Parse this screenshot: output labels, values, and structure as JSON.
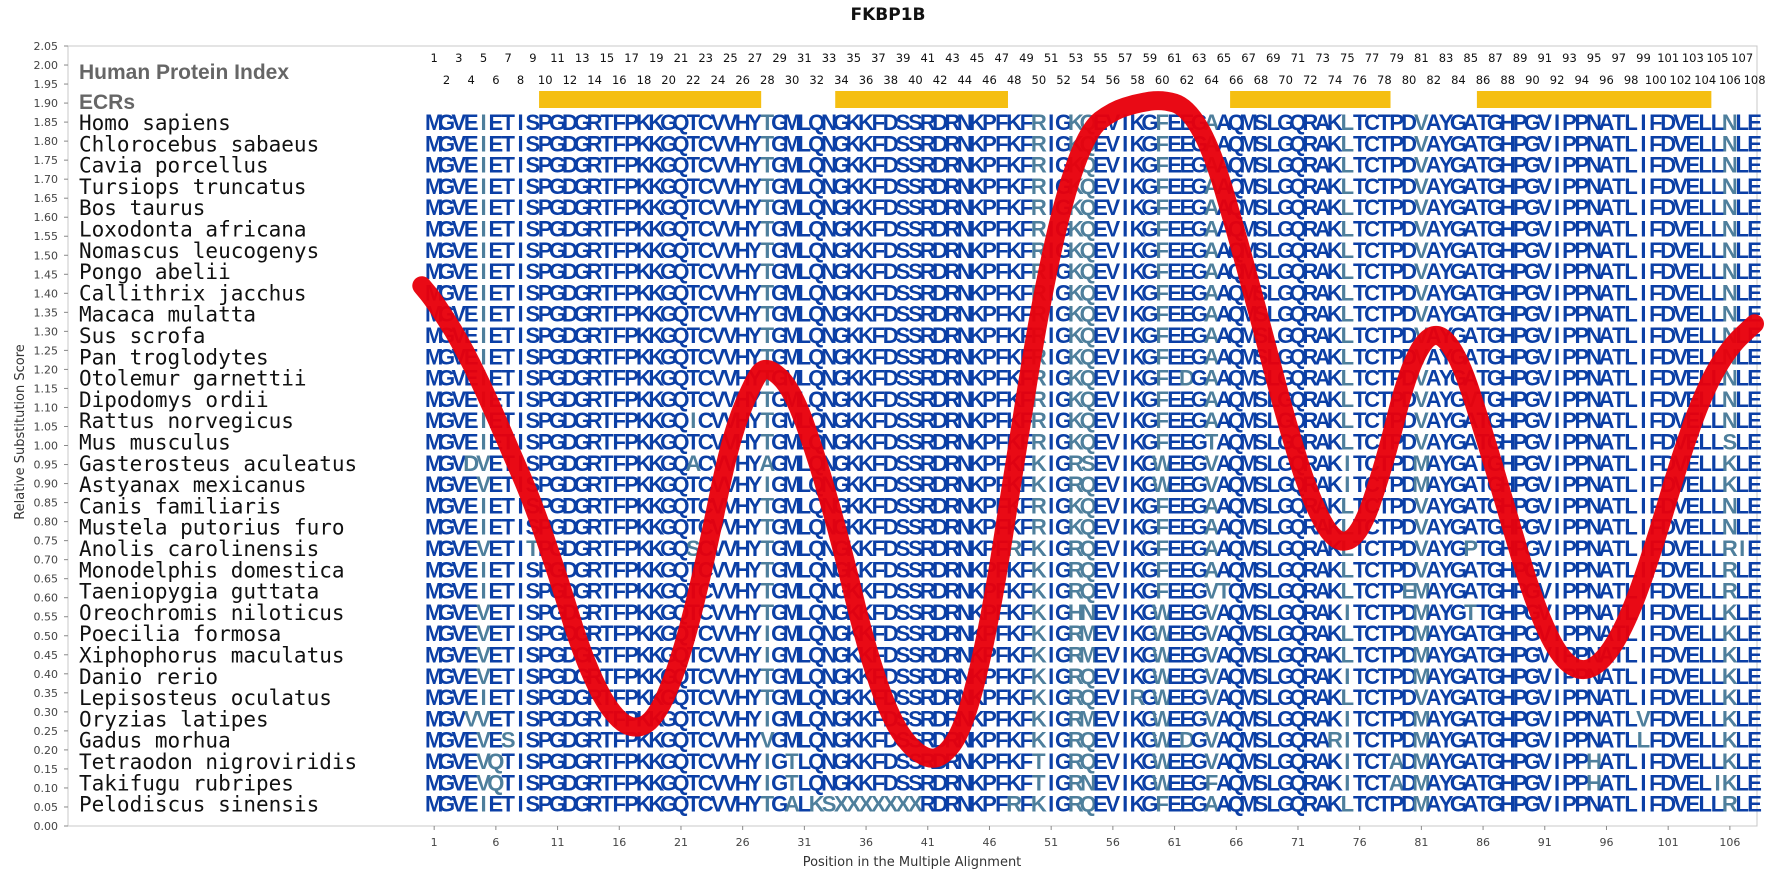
{
  "chart_data": {
    "type": "line",
    "title": "FKBP1B",
    "ylabel": "Relative Substitution Score",
    "xlabel": "Position in the Multiple Alignment",
    "ylim": [
      0.0,
      2.05
    ],
    "xlim": [
      1,
      108
    ],
    "yticks": [
      "0.00",
      "0.05",
      "0.10",
      "0.15",
      "0.20",
      "0.25",
      "0.30",
      "0.35",
      "0.40",
      "0.45",
      "0.50",
      "0.55",
      "0.60",
      "0.65",
      "0.70",
      "0.75",
      "0.80",
      "0.85",
      "0.90",
      "0.95",
      "1.00",
      "1.05",
      "1.10",
      "1.15",
      "1.20",
      "1.25",
      "1.30",
      "1.35",
      "1.40",
      "1.45",
      "1.50",
      "1.55",
      "1.60",
      "1.65",
      "1.70",
      "1.75",
      "1.80",
      "1.85",
      "1.90",
      "1.95",
      "2.00",
      "2.05"
    ],
    "xticks": [
      1,
      6,
      11,
      16,
      21,
      26,
      31,
      36,
      41,
      46,
      51,
      56,
      61,
      66,
      71,
      76,
      81,
      86,
      91,
      96,
      101,
      106
    ],
    "header_label": "Human Protein Index",
    "ecr_label": "ECRs",
    "position_numbers": [
      1,
      2,
      3,
      4,
      5,
      6,
      7,
      8,
      9,
      10,
      11,
      12,
      13,
      14,
      15,
      16,
      17,
      18,
      19,
      20,
      21,
      22,
      23,
      24,
      25,
      26,
      27,
      28,
      29,
      30,
      31,
      32,
      33,
      34,
      35,
      36,
      37,
      38,
      39,
      40,
      41,
      42,
      43,
      44,
      45,
      46,
      47,
      48,
      49,
      50,
      51,
      52,
      53,
      54,
      55,
      56,
      57,
      58,
      59,
      60,
      61,
      62,
      63,
      64,
      65,
      66,
      67,
      68,
      69,
      70,
      71,
      72,
      73,
      74,
      75,
      76,
      77,
      78,
      79,
      80,
      81,
      82,
      83,
      84,
      85,
      86,
      87,
      88,
      89,
      90,
      91,
      92,
      93,
      94,
      95,
      96,
      97,
      98,
      99,
      100,
      101,
      102,
      103,
      104,
      105,
      106,
      107,
      108
    ],
    "ecr_color": "#f5bf12",
    "line_color": "#e8000b",
    "conserved_color": "#0b3fa6",
    "variable_color": "#4e7f9c",
    "ecr_regions": [
      [
        10,
        27
      ],
      [
        34,
        47
      ],
      [
        66,
        78
      ],
      [
        86,
        104
      ]
    ],
    "series": [
      {
        "x": [
          0,
          1,
          3,
          5,
          7,
          9,
          11,
          13,
          15,
          17,
          19,
          21,
          23,
          25,
          27,
          28,
          30,
          32,
          34,
          36,
          38,
          40,
          42,
          44,
          46,
          48,
          50,
          52,
          54,
          56,
          58,
          60,
          62,
          64,
          66,
          68,
          70,
          72,
          74,
          76,
          78,
          80,
          82,
          84,
          86,
          88,
          90,
          92,
          94,
          96,
          98,
          100,
          102,
          104,
          106,
          108
        ],
        "values": [
          1.42,
          1.38,
          1.28,
          1.15,
          1.0,
          0.85,
          0.66,
          0.45,
          0.31,
          0.25,
          0.28,
          0.44,
          0.7,
          1.02,
          1.18,
          1.21,
          1.15,
          0.97,
          0.74,
          0.47,
          0.28,
          0.19,
          0.17,
          0.26,
          0.53,
          0.94,
          1.35,
          1.65,
          1.83,
          1.88,
          1.9,
          1.91,
          1.89,
          1.78,
          1.56,
          1.32,
          1.07,
          0.86,
          0.74,
          0.76,
          0.95,
          1.21,
          1.31,
          1.24,
          1.04,
          0.82,
          0.6,
          0.45,
          0.4,
          0.44,
          0.56,
          0.75,
          0.97,
          1.15,
          1.26,
          1.32
        ]
      }
    ],
    "rows": [
      {
        "species": "Homo sapiens",
        "seq": "MGVEIETISPGDGRTFPKKGQTCVVHYTGMLQNGKKFDSSRDRNKPFKFRIGKQEVIKGFEEGAAQMSLGQRAKLTCTPDVAYGATGHPGVIPPNATLIFDVELLNLE"
      },
      {
        "species": "Chlorocebus sabaeus",
        "seq": "MGVEIETISPGDGRTFPKKGQTCVVHYTGMLQNGKKFDSSRDRNKPFKFRIGKQEVIKGFEEGAAQMSLGQRAKLTCTPDVAYGATGHPGVIPPNATLIFDVELLNLE"
      },
      {
        "species": "Cavia porcellus",
        "seq": "MGVEIETISPGDGRTFPKKGQTCVVHYTGMLQNGKKFDSSRDRNKPFKFRIGKQEVIKGFEEGAAQMSLGQRAKLTCTPDVAYGATGHPGVIPPNATLIFDVELLNLE"
      },
      {
        "species": "Tursiops truncatus",
        "seq": "MGVEIETISPGDGRTFPKKGQTCVVHYTGMLQNGKKFDSSRDRNKPFKFRIGKQEVIKGFEEGAAQMSLGQRAKLTCTPDVAYGATGHPGVIPPNATLIFDVELLNLE"
      },
      {
        "species": "Bos taurus",
        "seq": "MGVEIETISPGDGRTFPKKGQTCVVHYTGMLQNGKKFDSSRDRNKPFKFRIGKQEVIKGFEEGAAQMSLGQRAKLTCTPDVAYGATGHPGVIPPNATLIFDVELLNLE"
      },
      {
        "species": "Loxodonta africana",
        "seq": "MGVEIETISPGDGRTFPKKGQTCVVHYTGMLQNGKKFDSSRDRNKPFKFRIGKQEVIKGFEEGAAQMSLGQRAKLTCTPDVAYGATGHPGVIPPNATLIFDVELLNLE"
      },
      {
        "species": "Nomascus leucogenys",
        "seq": "MGVEIETISPGDGRTFPKKGQTCVVHYTGMLQNGKKFDSSRDRNKPFKFRIGKQEVIKGFEEGAAQMSLGQRAKLTCTPDVAYGATGHPGVIPPNATLIFDVELLNLE"
      },
      {
        "species": "Pongo abelii",
        "seq": "MGVEIETISPGDGRTFPKKGQTCVVHYTGMLQNGKKFDSSRDRNKPFKFRIGKQEVIKGFEEGAAQMSLGQRAKLTCTPDVAYGATGHPGVIPPNATLIFDVELLNLE"
      },
      {
        "species": "Callithrix jacchus",
        "seq": "MGVEIETISPGDGRTFPKKGQTCVVHYTGMLQNGKKFDSSRDRNKPFKFRIGKQEVIKGFEEGAAQMSLGQRAKLTCTPDVAYGATGHPGVIPPNATLIFDVELLNLE"
      },
      {
        "species": "Macaca mulatta",
        "seq": "MGVEIETISPGDGRTFPKKGQTCVVHYTGMLQNGKKFDSSRDRNKPFKFRIGKQEVIKGFEEGAAQMSLGQRAKLTCTPDVAYGATGHPGVIPPNATLIFDVELLNLE"
      },
      {
        "species": "Sus scrofa",
        "seq": "MGVEIETISPGDGRTFPKKGQTCVVHYTGMLQNGKKFDSSRDRNKPFKFRIGKQEVIKGFEEGAAQMSLGQRAKLTCTPDVAYGATGHPGVIPPNATLIFDVELLNLE"
      },
      {
        "species": "Pan troglodytes",
        "seq": "MGVEIETISPGDGRTFPKKGQTCVVHYTGMLQNGKKFDSSRDRNKPFKFRIGKQEVIKGFEEGAAQMSLGQRAKLTCTPDVAYGATGHPGVIPPNATLIFDVELLNLE"
      },
      {
        "species": "Otolemur garnettii",
        "seq": "MGVEIETISPGDGRTFPKKGQTCVVHYTGMLQNGKKFDSSRDRNKPFKFRIGKQEVIKGFEDGAAQMSLGQRAKLTCTPDVAYGATGHPGVIPPNATLIFDVELLNLE"
      },
      {
        "species": "Dipodomys ordii",
        "seq": "MGVEIETISPGDGRTFPKKGQTCVVHYTGMLQNGKKFDSSRDRNKPFKFRIGKQEVIKGFEEGAAQMSLGQRAKLTCTPDVAYGVTGHPGVIPPNATLIFDVELLNLE"
      },
      {
        "species": "Rattus norvegicus",
        "seq": "MGVEIETISPGDGRTFPKKGQICVVHYTGMLQNGKKFDSSRDRNKPFKFRIGKQEVIKGFEEGAAQMSLGQRAKLTCTPDVAYGATGHPGVIPPNATLIFDVELLNLE"
      },
      {
        "species": "Mus musculus",
        "seq": "MGVEIETISPGDGRTFPKKGQTCVVHYTGMLQNGKKFDSSRDRNKPFKFRIGKQEVIKGFEEGTAQMSLGQRAKLTCTPDVAYGATGHPGVIPPNATLIFDVELLSLE"
      },
      {
        "species": "Gasterosteus aculeatus",
        "seq": "MGVDVETISPGDGRTFPKKGQACVVHYAGMLQNGKKFDSSRDRNKPFKFKIGRSEVIKGWEEGVAQMSLGQRAKITCTPDMAYGATGHPGVIPPNATLIFDVELLKLE"
      },
      {
        "species": "Astyanax mexicanus",
        "seq": "MGVEVETISPGDGRTFPKKGQTCVVHYIGMLQNGKKFDSSRDRNKPFKFKIGRQEVIKGWEEGVAQMSLGQRAKITCTPDMAYGATGHPGVIPPNATLIFDVELLKLE"
      },
      {
        "species": "Canis familiaris",
        "seq": "MGVEIETISPGDGRTFPKKGQTCVVHYTGMLQNGKKFDSSRDRNKPFKFRIGKQEVIKGFEEGAAQMSLGQRAKLTCTPDVAYGATGHPGVIPPNATLIFDVELLNLE"
      },
      {
        "species": "Mustela putorius furo",
        "seq": "MGVEIETISPGDGRTFPKKGQTCVVHYTGMLQNGKKFDSSRDRNKPFKFRIGKQEVIKGFEEGAAQMSLGQRAKLTCTPDVAYGATGHPGVIPPNATLIFDVELLNLE"
      },
      {
        "species": "Anolis carolinensis",
        "seq": "MGVEVETITPGDGRTFPKKGQSCVVHYTGMLQNGKKFDSSRDRNKPFRFKIGRQEVIKGFEEGAAQMSLGQRAKLTCTPDVAYGPTGHPGVIPPNATLIFDVELLRIE"
      },
      {
        "species": "Monodelphis domestica",
        "seq": "MGVEIETISPGDGRTFPKKGQTCVVHYTGMLQNGKKFDSSRDRNKPFKFKIGRQEVIKGFEEGAAQMSLGQRAKLTCTPDVAYGATGHPGVIPPNATLIFDVELLRLE"
      },
      {
        "species": "Taeniopygia guttata",
        "seq": "MGVEIETISPGDGRTFPKKGQTCVVHYTGMLQNGKKFDSSRDRNKPFKFKIGRQEVIKGFEEGVTQMSLGQRAKLTCTPEMAYGATGHPGVIPPNATLIFDVELLRLE"
      },
      {
        "species": "Oreochromis niloticus",
        "seq": "MGVEVETISPGDGRTFPKKGQTCVVHYTGMLQNGKKFDSSRDRNKPFKFKIGHNEVIKGWEEGVAQMSLGQRAKITCTPDMAYGTTGHPGVIPPNATLIFDVELLKLE"
      },
      {
        "species": "Poecilia formosa",
        "seq": "MGVEVETISPGDGRTFPKKGQTCVVHYIGMLQNGKKFDSSRDRNKPFKFKIGRMEVIKGWEEGVAQMSLGQRAKLTCTPDMAYGATGHPGVIPPNATLIFDVELLKLE"
      },
      {
        "species": "Xiphophorus maculatus",
        "seq": "MGVEVETISPGDGRTFPKKGQTCVVHYIGMLQNGKKFDSSRDRNKPFKFKIGRMEVIKGWEEGVAQMSLGQRAKLTCTPDMAYGATGHPGVIPPNATLIFDVELLKLE"
      },
      {
        "species": "Danio rerio",
        "seq": "MGVEVETISPGDGRTFPKKGQTCVVHYTGMLQNGKKFDSSRDRNKPFKFKIGRQEVIKGWEEGVAQMSLGQRAKITCTPDMAYGATGHPGVIPPNATLIFDVELLKLE"
      },
      {
        "species": "Lepisosteus oculatus",
        "seq": "MGVEIETISPGDGRTFPKKGQTCVVHYTGMLQNGKKFDSSRDRNKPFKFKIGRQEVIRGWEEGVAQMSLGQRAKLTCTPDVAYGATGHPGVIPPNATLIFDVELLKLE"
      },
      {
        "species": "Oryzias latipes",
        "seq": "MGVVVETISPGDGRTFPKKGQTCVVHYIGMLQNGKKFDSSRDRNKPFKFKIGRMEVIKGWEEGVAQMSLGQRAKITCTPDMAYGATGHPGVIPPNATLVFDVELLKLE"
      },
      {
        "species": "Gadus morhua",
        "seq": "MGVEVESISPGDGRTFPKKGQTCVVHYVGMLQNGKKFDSSRDRNKPFKFKIGRQEVIKGWEDGVAQMSLGQRARITCTPDMAYGATGHPGVIPPNATLLFDVELLKLE"
      },
      {
        "species": "Tetraodon nigroviridis",
        "seq": "MGVEVQTISPGDGRTFPKKGQTCVVHYIGTLQNGKKFDSSRDRNKPFKFTIGRQEVIKGWEEGVAQMSLGQRAKITCTADMAYGATGHPGVIPPHATLIFDVELLKLE"
      },
      {
        "species": "Takifugu rubripes",
        "seq": "MGVEVQTISPGDGRTFPKKGQTCVVHYIGTLQNGKKFDSSRDRNKPFKFTIGRNEVIKGWEEGFAQMSLGQRAKITCTADMAYGATGHPGVIPPHATLIFDVELIKLE"
      },
      {
        "species": "Pelodiscus sinensis",
        "seq": "MGVEIETISPGDGRTFPKKGQTCVVHYTGALKSXXXXXXXRDRNKPFRFKIGRQEVIKGFEEGAAQMSLGQRAKLTCTPDMAYGATGHPGVIPPNATLIFDVELLRLE"
      }
    ]
  }
}
